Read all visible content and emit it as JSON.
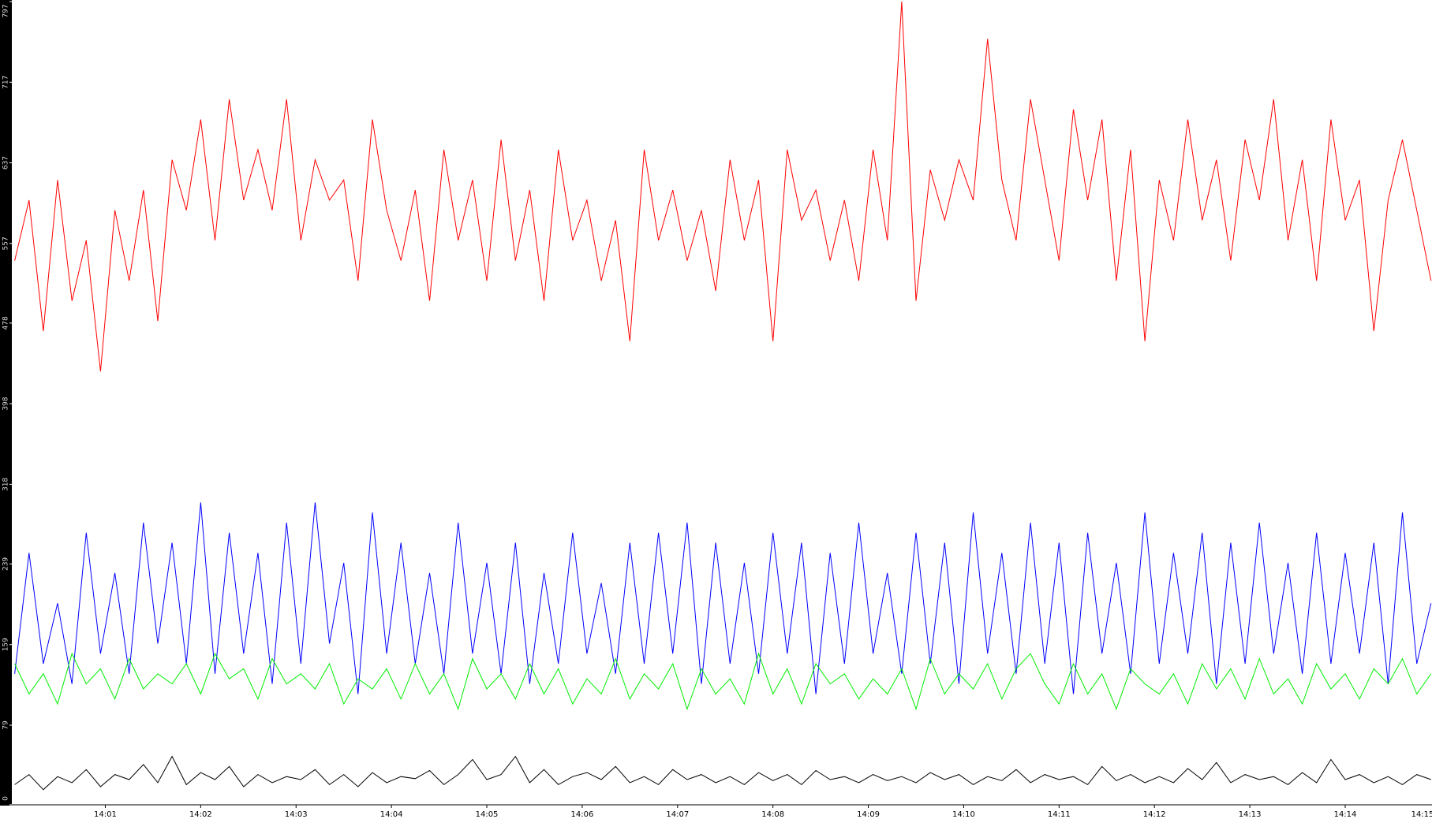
{
  "chart_data": {
    "type": "line",
    "x": [
      0.05,
      0.2,
      0.35,
      0.5,
      0.65,
      0.8,
      0.95,
      1.1,
      1.25,
      1.4,
      1.55,
      1.7,
      1.85,
      2,
      2.15,
      2.3,
      2.45,
      2.6,
      2.75,
      2.9,
      3.05,
      3.2,
      3.35,
      3.5,
      3.65,
      3.8,
      3.95,
      4.1,
      4.25,
      4.4,
      4.55,
      4.7,
      4.85,
      5,
      5.15,
      5.3,
      5.45,
      5.6,
      5.75,
      5.9,
      6.05,
      6.2,
      6.35,
      6.5,
      6.65,
      6.8,
      6.95,
      7.1,
      7.25,
      7.4,
      7.55,
      7.7,
      7.85,
      8,
      8.15,
      8.3,
      8.45,
      8.6,
      8.75,
      8.9,
      9.05,
      9.2,
      9.35,
      9.5,
      9.65,
      9.8,
      9.95,
      10.1,
      10.25,
      10.4,
      10.55,
      10.7,
      10.85,
      11,
      11.15,
      11.3,
      11.45,
      11.6,
      11.75,
      11.9,
      12.05,
      12.2,
      12.35,
      12.5,
      12.65,
      12.8,
      12.95,
      13.1,
      13.25,
      13.4,
      13.55,
      13.7,
      13.85,
      14,
      14.15,
      14.3,
      14.45,
      14.6,
      14.75,
      14.9
    ],
    "series": [
      {
        "color": "#ff0000",
        "values": [
          540,
          600,
          470,
          620,
          500,
          560,
          430,
          590,
          520,
          610,
          480,
          640,
          590,
          680,
          560,
          700,
          600,
          650,
          590,
          700,
          560,
          640,
          600,
          620,
          520,
          680,
          590,
          540,
          610,
          500,
          650,
          560,
          620,
          520,
          660,
          540,
          610,
          500,
          650,
          560,
          600,
          520,
          580,
          460,
          650,
          560,
          610,
          540,
          590,
          510,
          640,
          560,
          620,
          460,
          650,
          580,
          610,
          540,
          600,
          520,
          650,
          560,
          797,
          500,
          630,
          580,
          640,
          600,
          760,
          620,
          560,
          700,
          620,
          540,
          690,
          600,
          680,
          520,
          650,
          460,
          620,
          560,
          680,
          580,
          640,
          540,
          660,
          600,
          700,
          560,
          640,
          520,
          680,
          580,
          620,
          470,
          600,
          660,
          590,
          520
        ]
      },
      {
        "color": "#0000ff",
        "values": [
          130,
          250,
          140,
          200,
          120,
          270,
          150,
          230,
          130,
          280,
          160,
          260,
          140,
          300,
          130,
          270,
          150,
          250,
          120,
          280,
          140,
          300,
          160,
          240,
          110,
          290,
          150,
          260,
          140,
          230,
          130,
          280,
          150,
          240,
          130,
          260,
          120,
          230,
          140,
          270,
          150,
          220,
          130,
          260,
          140,
          270,
          150,
          280,
          120,
          260,
          140,
          240,
          130,
          270,
          150,
          260,
          110,
          250,
          140,
          280,
          150,
          230,
          130,
          270,
          140,
          260,
          120,
          290,
          150,
          250,
          130,
          280,
          140,
          260,
          110,
          270,
          150,
          240,
          130,
          290,
          140,
          250,
          150,
          270,
          120,
          260,
          140,
          280,
          150,
          240,
          130,
          270,
          140,
          250,
          150,
          260,
          120,
          290,
          140,
          200
        ]
      },
      {
        "color": "#00ee00",
        "values": [
          140,
          110,
          130,
          100,
          150,
          120,
          135,
          105,
          145,
          115,
          130,
          120,
          140,
          110,
          150,
          125,
          135,
          105,
          145,
          120,
          130,
          115,
          140,
          100,
          125,
          115,
          135,
          105,
          140,
          110,
          130,
          95,
          145,
          115,
          130,
          105,
          140,
          110,
          135,
          100,
          125,
          110,
          145,
          105,
          130,
          115,
          140,
          95,
          135,
          110,
          125,
          100,
          150,
          110,
          135,
          100,
          140,
          120,
          130,
          105,
          125,
          110,
          135,
          95,
          145,
          110,
          130,
          115,
          140,
          105,
          135,
          150,
          120,
          100,
          140,
          110,
          130,
          95,
          135,
          120,
          110,
          130,
          100,
          140,
          115,
          135,
          105,
          145,
          110,
          125,
          100,
          140,
          115,
          130,
          105,
          135,
          120,
          145,
          110,
          130
        ]
      },
      {
        "color": "#000000",
        "values": [
          20,
          30,
          15,
          28,
          22,
          35,
          18,
          30,
          25,
          40,
          22,
          48,
          20,
          32,
          25,
          38,
          18,
          30,
          22,
          28,
          25,
          35,
          20,
          30,
          18,
          32,
          22,
          28,
          26,
          34,
          20,
          30,
          45,
          25,
          30,
          48,
          22,
          35,
          20,
          28,
          32,
          25,
          38,
          22,
          28,
          20,
          35,
          25,
          30,
          22,
          28,
          20,
          32,
          24,
          30,
          20,
          34,
          25,
          28,
          22,
          30,
          24,
          28,
          22,
          32,
          25,
          30,
          20,
          28,
          24,
          35,
          22,
          30,
          25,
          28,
          20,
          38,
          24,
          30,
          22,
          28,
          22,
          36,
          25,
          42,
          22,
          30,
          25,
          28,
          20,
          32,
          22,
          45,
          25,
          30,
          22,
          28,
          20,
          30,
          25
        ]
      }
    ],
    "xlim": [
      0.02,
      14.91
    ],
    "xticks": [
      {
        "value": 1,
        "label": "14:01"
      },
      {
        "value": 2,
        "label": "14:02"
      },
      {
        "value": 3,
        "label": "14:03"
      },
      {
        "value": 4,
        "label": "14:04"
      },
      {
        "value": 5,
        "label": "14:05"
      },
      {
        "value": 6,
        "label": "14:06"
      },
      {
        "value": 7,
        "label": "14:07"
      },
      {
        "value": 8,
        "label": "14:08"
      },
      {
        "value": 9,
        "label": "14:09"
      },
      {
        "value": 10,
        "label": "14:10"
      },
      {
        "value": 11,
        "label": "14:11"
      },
      {
        "value": 12,
        "label": "14:12"
      },
      {
        "value": 13,
        "label": "14:13"
      },
      {
        "value": 14,
        "label": "14:14"
      },
      {
        "value": 15,
        "label": "14:15"
      }
    ],
    "ylim": [
      0,
      797
    ],
    "yticks": [
      0,
      79,
      159,
      239,
      318,
      398,
      478,
      557,
      637,
      717,
      797
    ]
  }
}
